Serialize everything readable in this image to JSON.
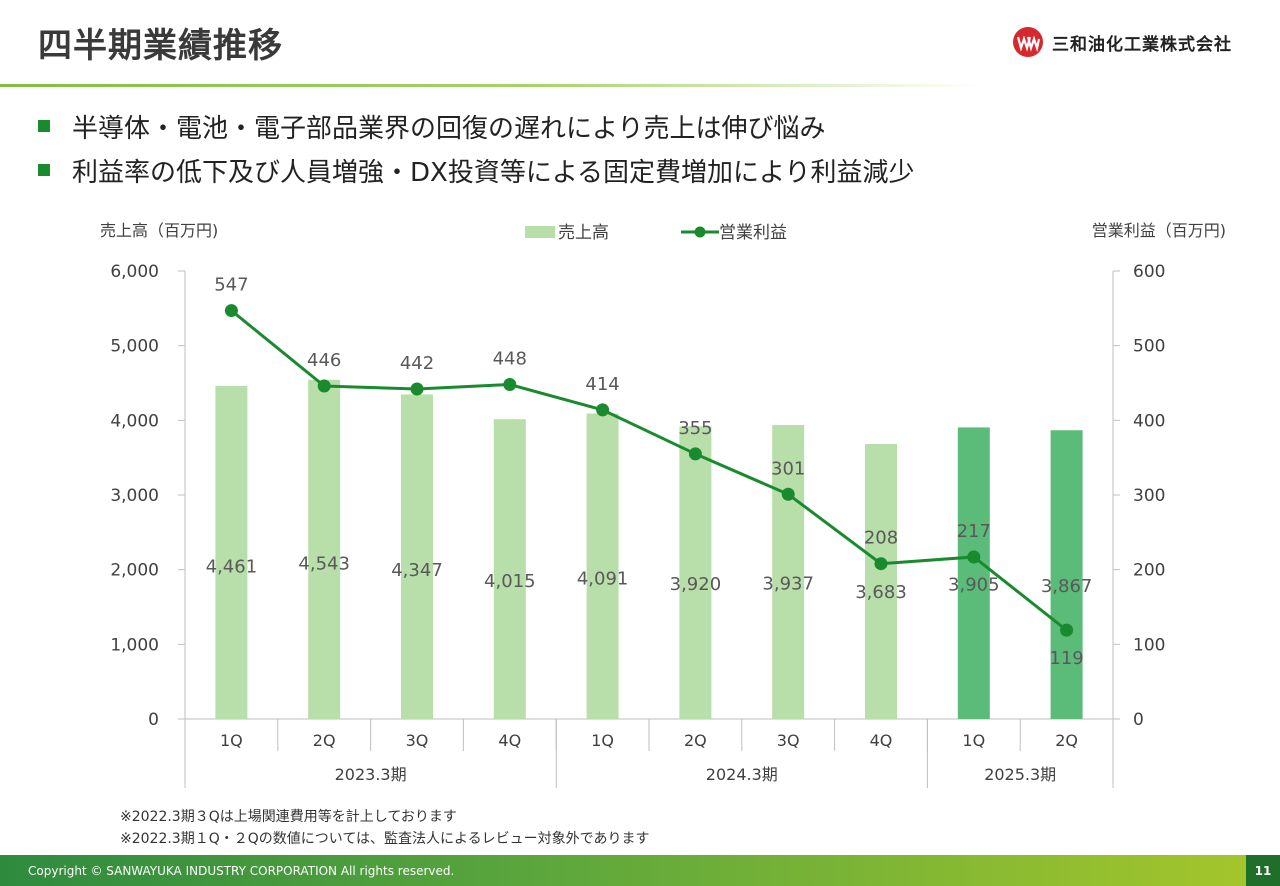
{
  "page": {
    "title": "四半期業績推移",
    "company": "三和油化工業株式会社",
    "bullets": [
      "半導体・電池・電子部品業界の回復の遅れにより売上は伸び悩み",
      "利益率の低下及び人員増強・DX投資等による固定費増加により利益減少"
    ],
    "notes": [
      "※2022.3期３Qは上場関連費用等を計上しております",
      "※2022.3期１Q・２Qの数値については、監査法人によるレビュー対象外であります"
    ],
    "copyright": "Copyright © SANWAYUKA INDUSTRY CORPORATION All rights reserved.",
    "page_number": "11"
  },
  "colors": {
    "bar_light": "#b8deaa",
    "bar_dark": "#5bbb78",
    "line": "#1a8a2e",
    "axis": "#bfbfbf"
  },
  "chart_data": {
    "type": "bar",
    "left_axis_title": "売上高（百万円)",
    "right_axis_title": "営業利益（百万円)",
    "categories": [
      "1Q",
      "2Q",
      "3Q",
      "4Q",
      "1Q",
      "2Q",
      "3Q",
      "4Q",
      "1Q",
      "2Q"
    ],
    "groups": [
      {
        "label": "2023.3期",
        "count": 4
      },
      {
        "label": "2024.3期",
        "count": 4
      },
      {
        "label": "2025.3期",
        "count": 2
      }
    ],
    "left_ylim": [
      0,
      6000
    ],
    "left_ticks": [
      "0",
      "1,000",
      "2,000",
      "3,000",
      "4,000",
      "5,000",
      "6,000"
    ],
    "right_ylim": [
      0,
      600
    ],
    "right_ticks": [
      "0",
      "100",
      "200",
      "300",
      "400",
      "500",
      "600"
    ],
    "series": [
      {
        "name": "売上高",
        "type": "bar",
        "axis": "left",
        "values": [
          4461,
          4543,
          4347,
          4015,
          4091,
          3920,
          3937,
          3683,
          3905,
          3867
        ],
        "labels": [
          "4,461",
          "4,543",
          "4,347",
          "4,015",
          "4,091",
          "3,920",
          "3,937",
          "3,683",
          "3,905",
          "3,867"
        ],
        "highlight_from_index": 8
      },
      {
        "name": "営業利益",
        "type": "line",
        "axis": "right",
        "values": [
          547,
          446,
          442,
          448,
          414,
          355,
          301,
          208,
          217,
          119
        ],
        "labels": [
          "547",
          "446",
          "442",
          "448",
          "414",
          "355",
          "301",
          "208",
          "217",
          "119"
        ]
      }
    ]
  }
}
